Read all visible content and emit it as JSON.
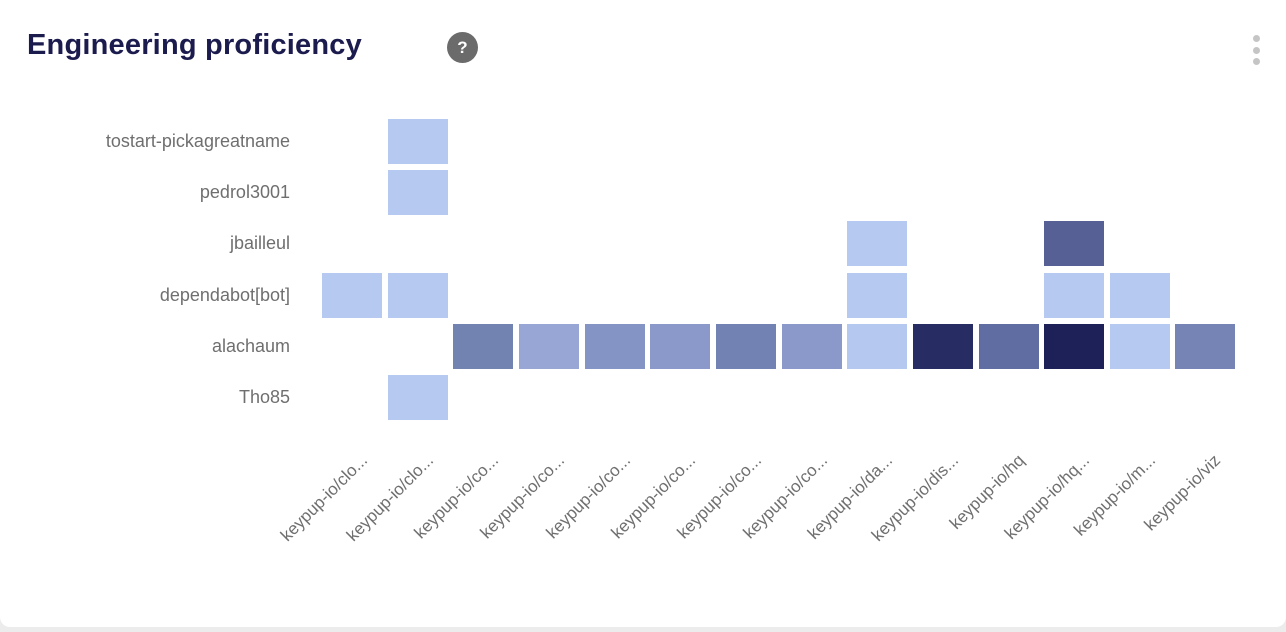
{
  "header": {
    "title": "Engineering proficiency",
    "help_icon": "question-mark-circle",
    "menu_icon": "kebab-vertical-dots"
  },
  "colors": {
    "title_text": "#1b1b4e",
    "axis_label_text": "#6f6f6f",
    "help_icon_bg": "#6b6b6b",
    "kebab_dots": "#c5c5c5",
    "card_bg": "#ffffff",
    "page_bg": "#ececec"
  },
  "chart_data": {
    "type": "heatmap",
    "title": "Engineering proficiency",
    "legend": "none",
    "grid": "off",
    "rows": [
      "tostart-pickagreatname",
      "pedrol3001",
      "jbailleul",
      "dependabot[bot]",
      "alachaum",
      "Tho85"
    ],
    "columns": [
      "keypup-io/clo...",
      "keypup-io/clo...",
      "keypup-io/co...",
      "keypup-io/co...",
      "keypup-io/co...",
      "keypup-io/co...",
      "keypup-io/co...",
      "keypup-io/co...",
      "keypup-io/da...",
      "keypup-io/dis...",
      "keypup-io/hq",
      "keypup-io/hq...",
      "keypup-io/m...",
      "keypup-io/viz"
    ],
    "color_scale": {
      "low_color": "#b5c9f1",
      "high_color": "#1d2157",
      "low_value": 0,
      "high_value": 1
    },
    "cells": [
      {
        "row": 0,
        "col": 1,
        "color": "#b5c9f1",
        "level": 0.1
      },
      {
        "row": 1,
        "col": 1,
        "color": "#b5c9f1",
        "level": 0.1
      },
      {
        "row": 2,
        "col": 8,
        "color": "#b5c9f1",
        "level": 0.1
      },
      {
        "row": 2,
        "col": 11,
        "color": "#566094",
        "level": 0.75
      },
      {
        "row": 3,
        "col": 0,
        "color": "#b5c9f1",
        "level": 0.1
      },
      {
        "row": 3,
        "col": 1,
        "color": "#b5c9f1",
        "level": 0.1
      },
      {
        "row": 3,
        "col": 8,
        "color": "#b5c9f1",
        "level": 0.1
      },
      {
        "row": 3,
        "col": 11,
        "color": "#b5c9f1",
        "level": 0.1
      },
      {
        "row": 3,
        "col": 12,
        "color": "#b5c9f1",
        "level": 0.1
      },
      {
        "row": 4,
        "col": 2,
        "color": "#7282b1",
        "level": 0.6
      },
      {
        "row": 4,
        "col": 3,
        "color": "#97a6d4",
        "level": 0.35
      },
      {
        "row": 4,
        "col": 4,
        "color": "#8494c4",
        "level": 0.48
      },
      {
        "row": 4,
        "col": 5,
        "color": "#8a99ca",
        "level": 0.45
      },
      {
        "row": 4,
        "col": 6,
        "color": "#7182b3",
        "level": 0.6
      },
      {
        "row": 4,
        "col": 7,
        "color": "#8a99ca",
        "level": 0.45
      },
      {
        "row": 4,
        "col": 8,
        "color": "#b4c8f0",
        "level": 0.1
      },
      {
        "row": 4,
        "col": 9,
        "color": "#272c63",
        "level": 0.95
      },
      {
        "row": 4,
        "col": 10,
        "color": "#5f6da2",
        "level": 0.68
      },
      {
        "row": 4,
        "col": 11,
        "color": "#1d2157",
        "level": 1.0
      },
      {
        "row": 4,
        "col": 12,
        "color": "#b5c9f1",
        "level": 0.1
      },
      {
        "row": 4,
        "col": 13,
        "color": "#7584b4",
        "level": 0.55
      },
      {
        "row": 5,
        "col": 1,
        "color": "#b5c9f1",
        "level": 0.1
      }
    ]
  }
}
